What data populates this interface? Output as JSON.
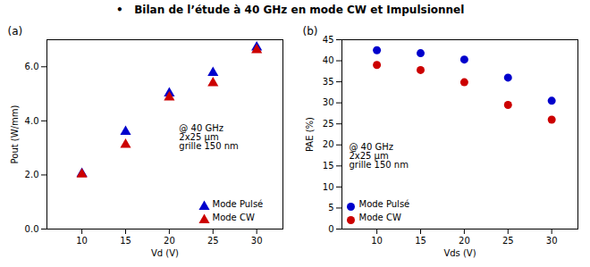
{
  "chart_data": [
    {
      "type": "scatter",
      "title": "•   Bilan de l’étude à 40 GHz en mode CW et Impulsionnel",
      "subtitle": "(a)",
      "xlabel": "Vd (V)",
      "ylabel": "Pout (W/mm)",
      "xlim": [
        6,
        33
      ],
      "ylim": [
        0,
        7
      ],
      "xticks": [
        10,
        15,
        20,
        25,
        30
      ],
      "yticks": [
        0,
        2,
        4,
        6
      ],
      "marker": "triangle",
      "legend": "lower right",
      "annotation": "@ 40 GHz\n2x25 μm\ngrille 150 nm",
      "series": [
        {
          "name": "Mode Pulsé",
          "color": "#0000cc",
          "x": [
            10,
            15,
            20,
            25,
            30
          ],
          "values": [
            2.05,
            3.6,
            5.02,
            5.78,
            6.72
          ]
        },
        {
          "name": "Mode CW",
          "color": "#cc0000",
          "x": [
            10,
            15,
            20,
            25,
            30
          ],
          "values": [
            2.02,
            3.12,
            4.87,
            5.4,
            6.62
          ]
        }
      ]
    },
    {
      "type": "scatter",
      "subtitle": "(b)",
      "xlabel": "Vds (V)",
      "ylabel": "PAE (%)",
      "xlim": [
        6,
        33
      ],
      "ylim": [
        0,
        45
      ],
      "xticks": [
        10,
        15,
        20,
        25,
        30
      ],
      "yticks": [
        0,
        5,
        10,
        15,
        20,
        25,
        30,
        35,
        40,
        45
      ],
      "marker": "circle",
      "legend": "lower left",
      "annotation": "@ 40 GHz\n2x25 μm\ngrille 150 nm",
      "series": [
        {
          "name": "Mode Pulsé",
          "color": "#0000cc",
          "x": [
            10,
            15,
            20,
            25,
            30
          ],
          "values": [
            42.5,
            41.8,
            40.3,
            36.0,
            30.5
          ]
        },
        {
          "name": "Mode CW",
          "color": "#cc0000",
          "x": [
            10,
            15,
            20,
            25,
            30
          ],
          "values": [
            39.0,
            37.8,
            34.9,
            29.5,
            26.0
          ]
        }
      ]
    }
  ]
}
